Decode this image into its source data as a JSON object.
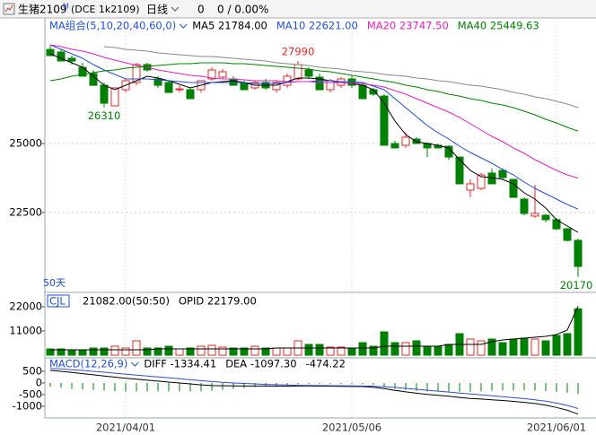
{
  "header": {
    "symbol": "生猪2109",
    "suffix": "M",
    "code": "(DCE 1k2109)",
    "period": "日线",
    "price": 0,
    "change": "0 / 0.00%"
  },
  "chart_data": [
    {
      "type": "candlestick",
      "legend_title": "MA组合(5,10,20,40,60,0)",
      "period_label": "50天",
      "up_color": "#e0282a",
      "down_color": "#008000",
      "categories": [
        null,
        null,
        null,
        null,
        null,
        null,
        null,
        "2021/04/01",
        null,
        null,
        null,
        null,
        null,
        null,
        null,
        null,
        null,
        null,
        null,
        null,
        null,
        null,
        null,
        null,
        null,
        null,
        null,
        null,
        "2021/05/06",
        null,
        null,
        null,
        null,
        null,
        null,
        null,
        null,
        null,
        null,
        null,
        null,
        null,
        null,
        null,
        null,
        null,
        null,
        "2021/06/01",
        null,
        null
      ],
      "open": [
        28410,
        28315,
        28090,
        27760,
        27535,
        27110,
        26365,
        26950,
        27210,
        27860,
        27340,
        27210,
        26950,
        26950,
        26950,
        27340,
        27405,
        27340,
        27180,
        27015,
        27210,
        26950,
        27110,
        27340,
        27665,
        27405,
        26950,
        27110,
        27340,
        27110,
        26950,
        26720,
        25000,
        24935,
        25160,
        25000,
        24935,
        24900,
        24510,
        23310,
        23375,
        23930,
        24025,
        23700,
        22985,
        22370,
        22400,
        22240,
        21910,
        21490
      ],
      "high": [
        28575,
        28410,
        28185,
        27925,
        27660,
        27210,
        27020,
        27340,
        27925,
        27925,
        27440,
        27275,
        27110,
        27015,
        27275,
        27760,
        27700,
        27440,
        27275,
        27275,
        27340,
        27275,
        27535,
        27990,
        27760,
        27535,
        27340,
        27405,
        27440,
        27210,
        27015,
        26790,
        25100,
        25400,
        25230,
        25050,
        25000,
        24935,
        24510,
        23700,
        23930,
        24100,
        24100,
        23700,
        23050,
        23500,
        22450,
        22300,
        21950,
        21550
      ],
      "low": [
        28185,
        27990,
        27860,
        27440,
        27110,
        26310,
        26350,
        26850,
        27110,
        27600,
        27015,
        26850,
        26850,
        26620,
        26850,
        27275,
        27340,
        27110,
        26950,
        26950,
        26950,
        26850,
        27015,
        27275,
        27340,
        26950,
        26850,
        27015,
        27015,
        26625,
        26720,
        24935,
        24840,
        24840,
        25000,
        24510,
        24840,
        24400,
        23540,
        23050,
        23310,
        23540,
        23700,
        23050,
        22400,
        22300,
        22150,
        21850,
        21450,
        20170
      ],
      "close": [
        28185,
        27990,
        27990,
        27440,
        27110,
        26460,
        27015,
        27275,
        27860,
        27665,
        27110,
        26850,
        26980,
        26625,
        27275,
        27665,
        27600,
        27110,
        26950,
        27210,
        27015,
        27210,
        27440,
        27860,
        27440,
        26950,
        27275,
        27340,
        27110,
        26625,
        26790,
        24935,
        24840,
        25230,
        25000,
        24840,
        24840,
        24510,
        23540,
        23540,
        23860,
        23540,
        23765,
        23050,
        22465,
        22465,
        22240,
        21910,
        21490,
        20545
      ],
      "series": [
        {
          "name": "MA5 21784.00",
          "color": "#000000",
          "values": [
            28250,
            28088,
            27925,
            27763,
            27438,
            27113,
            26950,
            27113,
            27275,
            27438,
            27373,
            27275,
            27145,
            27015,
            27113,
            27210,
            27243,
            27275,
            27210,
            27113,
            27113,
            27113,
            27243,
            27373,
            27373,
            27340,
            27275,
            27210,
            27178,
            27113,
            26950,
            26463,
            25813,
            25325,
            25065,
            25000,
            24935,
            24838,
            24415,
            24025,
            23798,
            23765,
            23700,
            23538,
            23213,
            22985,
            22660,
            22238,
            22010,
            21784
          ]
        },
        {
          "name": "MA10 22621.00",
          "color": "#2050d0",
          "values": [
            28575,
            28413,
            28250,
            28088,
            27860,
            27665,
            27503,
            27340,
            27340,
            27340,
            27308,
            27275,
            27243,
            27210,
            27210,
            27210,
            27210,
            27210,
            27210,
            27178,
            27178,
            27178,
            27210,
            27243,
            27243,
            27275,
            27275,
            27243,
            27243,
            27210,
            27080,
            26950,
            26625,
            26300,
            25975,
            25650,
            25390,
            25163,
            24903,
            24675,
            24480,
            24285,
            24058,
            23863,
            23603,
            23375,
            23180,
            22985,
            22790,
            22621
          ]
        },
        {
          "name": "MA20 23747.50",
          "color": "#e020c0",
          "values": [
            28575,
            28510,
            28413,
            28348,
            28250,
            28120,
            28023,
            27925,
            27828,
            27763,
            27665,
            27600,
            27535,
            27470,
            27438,
            27373,
            27340,
            27340,
            27308,
            27275,
            27275,
            27275,
            27243,
            27243,
            27243,
            27210,
            27210,
            27210,
            27178,
            27178,
            27113,
            27048,
            26918,
            26788,
            26625,
            26463,
            26300,
            26138,
            25943,
            25715,
            25488,
            25260,
            25065,
            24838,
            24643,
            24415,
            24220,
            24025,
            23863,
            23747.5
          ]
        },
        {
          "name": "MA40 25449.63",
          "color": "#008000",
          "values": [
            27275,
            27340,
            27438,
            27503,
            27568,
            27633,
            27665,
            27730,
            27763,
            27795,
            27828,
            27860,
            27893,
            27893,
            27925,
            27925,
            27925,
            27893,
            27893,
            27860,
            27828,
            27795,
            27763,
            27730,
            27698,
            27633,
            27600,
            27535,
            27470,
            27405,
            27340,
            27275,
            27210,
            27113,
            27048,
            26950,
            26885,
            26788,
            26720,
            26625,
            26560,
            26463,
            26398,
            26300,
            26170,
            26040,
            25878,
            25748,
            25585,
            25449.63
          ]
        },
        {
          "color": "#888888",
          "values": [
            null,
            null,
            null,
            null,
            null,
            28510,
            28478,
            28413,
            28380,
            28348,
            28283,
            28250,
            28218,
            28185,
            28153,
            28153,
            28120,
            28088,
            28055,
            28023,
            27990,
            27925,
            27893,
            27860,
            27828,
            27763,
            27730,
            27698,
            27633,
            27600,
            27568,
            27503,
            27470,
            27438,
            27373,
            27340,
            27275,
            27243,
            27178,
            27113,
            27080,
            27015,
            26950,
            26853,
            26788,
            26690,
            26625,
            26528,
            26430,
            26300
          ]
        }
      ],
      "annotations": [
        27990,
        26310,
        20170
      ],
      "ylim": [
        19638,
        29550
      ],
      "yticks": [
        25000,
        22500
      ],
      "grid": true
    },
    {
      "type": "bar",
      "title": "CJL",
      "subtitle": "21082.00(50:50)",
      "values": [
        2850,
        2850,
        2440,
        2440,
        3260,
        3260,
        4070,
        3260,
        6520,
        3260,
        3260,
        4070,
        2850,
        3260,
        4070,
        4480,
        3670,
        3260,
        3260,
        4070,
        3260,
        3260,
        3260,
        6520,
        4890,
        4890,
        3670,
        3670,
        3260,
        5700,
        4070,
        10590,
        5700,
        5700,
        6520,
        4070,
        4070,
        4890,
        9780,
        7330,
        6520,
        7330,
        5700,
        7330,
        7740,
        7330,
        6520,
        8960,
        9780,
        21082
      ],
      "series": [
        {
          "name": "OPID 22179.00",
          "color": "#000000",
          "values": [
            2440,
            2440,
            2440,
            2440,
            2440,
            2440,
            2440,
            2440,
            2440,
            2440,
            2850,
            2850,
            2850,
            2850,
            2850,
            2850,
            2850,
            2850,
            2850,
            2850,
            2850,
            3260,
            3260,
            3260,
            3260,
            3260,
            3260,
            3260,
            3260,
            3260,
            3260,
            4070,
            4070,
            4070,
            4070,
            4070,
            4070,
            4890,
            4890,
            4890,
            4890,
            6110,
            6920,
            7330,
            7740,
            8140,
            8550,
            9360,
            11400,
            22179
          ]
        }
      ],
      "ylim": [
        0,
        26890
      ],
      "yticks": [
        22000,
        11000
      ]
    },
    {
      "type": "macd",
      "title": "MACD(12,26,9)",
      "up_color": "#e0282a",
      "down_color": "#008000",
      "bars": {
        "name": "-474.22",
        "values": [
          -160,
          -200,
          -240,
          -280,
          -300,
          -320,
          -340,
          -360,
          -360,
          -360,
          -360,
          -360,
          -360,
          -360,
          -360,
          -340,
          -300,
          -250,
          -220,
          -180,
          -140,
          -120,
          -90,
          -60,
          -50,
          -50,
          -50,
          -50,
          -50,
          -50,
          -80,
          -160,
          -260,
          -300,
          -340,
          -360,
          -360,
          -360,
          -380,
          -380,
          -360,
          -340,
          -320,
          -320,
          -320,
          -320,
          -340,
          -380,
          -420,
          -474.22
        ]
      },
      "series": [
        {
          "name": "DIFF -1334.41",
          "color": "#000000",
          "values": [
            540,
            500,
            450,
            400,
            350,
            300,
            250,
            200,
            160,
            120,
            80,
            40,
            0,
            -40,
            -80,
            -110,
            -120,
            -125,
            -130,
            -130,
            -130,
            -135,
            -135,
            -130,
            -130,
            -135,
            -140,
            -145,
            -150,
            -155,
            -180,
            -240,
            -320,
            -380,
            -440,
            -490,
            -530,
            -570,
            -620,
            -660,
            -690,
            -720,
            -750,
            -790,
            -830,
            -880,
            -950,
            -1050,
            -1170,
            -1334.41
          ]
        },
        {
          "name": "DEA -1097.30",
          "color": "#3050c0",
          "values": [
            620,
            600,
            570,
            540,
            500,
            460,
            420,
            380,
            340,
            300,
            260,
            220,
            180,
            140,
            100,
            60,
            30,
            0,
            -20,
            -40,
            -60,
            -75,
            -90,
            -100,
            -105,
            -110,
            -115,
            -120,
            -125,
            -130,
            -140,
            -160,
            -190,
            -230,
            -270,
            -310,
            -350,
            -390,
            -430,
            -470,
            -510,
            -550,
            -590,
            -630,
            -670,
            -720,
            -780,
            -860,
            -960,
            -1097.3
          ]
        }
      ],
      "ylim": [
        -1462,
        923
      ],
      "yticks": [
        500,
        0,
        -500,
        -1000
      ]
    }
  ]
}
